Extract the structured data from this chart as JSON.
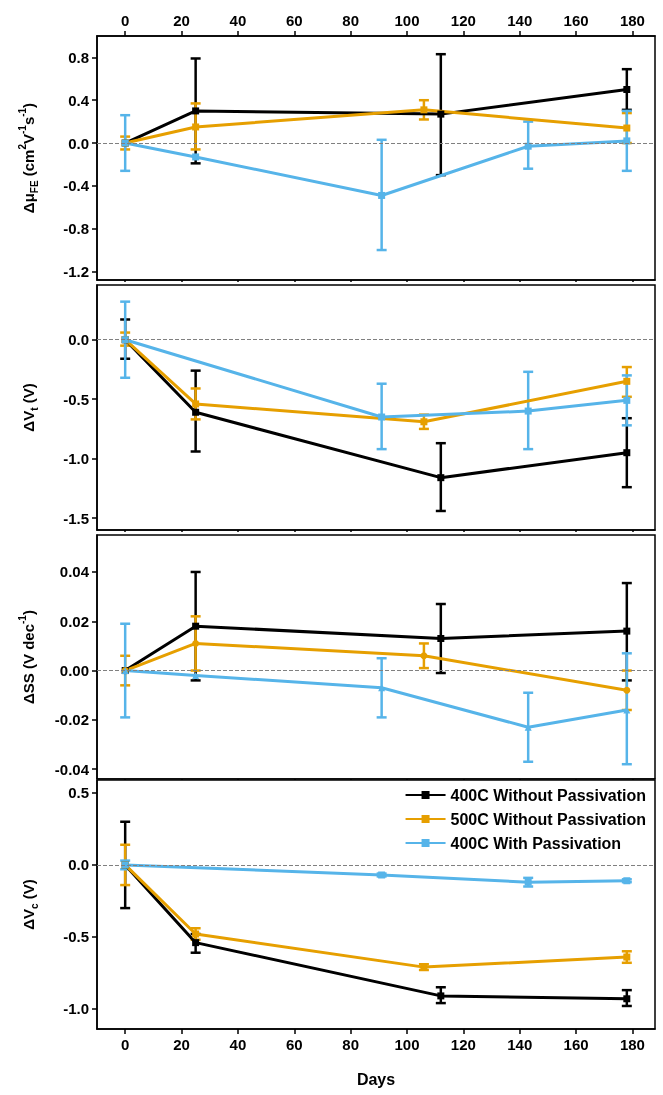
{
  "chart_data": [
    {
      "type": "line",
      "ylabel": "Δμ$_{FE}$ (cm$^{2}$V$^{-1}$s$^{-1}$)",
      "xlim": [
        -10,
        188
      ],
      "xticks": [
        0,
        20,
        40,
        60,
        80,
        100,
        120,
        140,
        160,
        180
      ],
      "x2lim": [
        -10,
        188
      ],
      "x2ticks": [
        0,
        20,
        40,
        60,
        80,
        100,
        120,
        140,
        160,
        180
      ],
      "tick_labels": "y",
      "ylim": [
        -1.28,
        1.0
      ],
      "yticks": [
        {
          "value": -1.2,
          "label": "-1.2"
        },
        {
          "value": -0.8,
          "label": "-0.8"
        },
        {
          "value": -0.4,
          "label": "-0.4"
        },
        {
          "value": 0,
          "label": "0.0"
        },
        {
          "value": 0.4,
          "label": "0.4"
        },
        {
          "value": 0.8,
          "label": "0.8"
        }
      ],
      "marker": "square",
      "line_style": "solid",
      "grid": false,
      "legend": false,
      "ref_lines": [
        {
          "axis": "y",
          "value": 0,
          "color": "#808080",
          "line_style": "dashed"
        }
      ],
      "series": [
        {
          "color": "#000000",
          "x": [
            0,
            25,
            112,
            178
          ],
          "values": [
            0,
            0.3,
            0.27,
            0.5
          ],
          "errors": [
            null,
            [
              -0.19,
              0.79
            ],
            [
              -0.3,
              0.83
            ],
            [
              0.31,
              0.69
            ]
          ]
        },
        {
          "color": "#e69f00",
          "x": [
            0,
            25,
            106,
            178
          ],
          "values": [
            0,
            0.15,
            0.31,
            0.14
          ],
          "errors": [
            [
              -0.06,
              0.06
            ],
            [
              -0.06,
              0.37
            ],
            [
              0.22,
              0.4
            ],
            [
              0.0,
              0.28
            ]
          ]
        },
        {
          "color": "#56b4e9",
          "x": [
            0,
            25,
            91,
            143,
            178
          ],
          "values": [
            0,
            -0.13,
            -0.49,
            -0.03,
            0.02
          ],
          "errors": [
            [
              -0.26,
              0.26
            ],
            null,
            [
              -1.0,
              0.03
            ],
            [
              -0.24,
              0.2
            ],
            [
              -0.26,
              0.3
            ]
          ]
        }
      ]
    },
    {
      "type": "line",
      "ylabel": "ΔV$_{t}$ (V)",
      "xlim": [
        -10,
        188
      ],
      "xticks": [
        0,
        20,
        40,
        60,
        80,
        100,
        120,
        140,
        160,
        180
      ],
      "tick_labels": "y",
      "ylim": [
        -1.6,
        0.46
      ],
      "yticks": [
        {
          "value": -1.5,
          "label": "-1.5"
        },
        {
          "value": -1.0,
          "label": "-1.0"
        },
        {
          "value": -0.5,
          "label": "-0.5"
        },
        {
          "value": 0,
          "label": "0.0"
        }
      ],
      "marker": "square",
      "line_style": "solid",
      "grid": false,
      "legend": false,
      "ref_lines": [
        {
          "axis": "y",
          "value": 0,
          "color": "#808080",
          "line_style": "dashed"
        }
      ],
      "series": [
        {
          "color": "#000000",
          "x": [
            0,
            25,
            112,
            178
          ],
          "values": [
            0,
            -0.61,
            -1.16,
            -0.95
          ],
          "errors": [
            [
              -0.16,
              0.17
            ],
            [
              -0.94,
              -0.26
            ],
            [
              -1.44,
              -0.87
            ],
            [
              -1.24,
              -0.66
            ]
          ]
        },
        {
          "color": "#e69f00",
          "x": [
            0,
            25,
            106,
            178
          ],
          "values": [
            0,
            -0.54,
            -0.69,
            -0.35
          ],
          "errors": [
            [
              -0.05,
              0.06
            ],
            [
              -0.67,
              -0.41
            ],
            [
              -0.75,
              -0.63
            ],
            [
              -0.48,
              -0.23
            ]
          ]
        },
        {
          "color": "#56b4e9",
          "x": [
            0,
            91,
            143,
            178
          ],
          "values": [
            0,
            -0.65,
            -0.6,
            -0.51
          ],
          "errors": [
            [
              -0.32,
              0.32
            ],
            [
              -0.92,
              -0.37
            ],
            [
              -0.92,
              -0.27
            ],
            [
              -0.72,
              -0.3
            ]
          ]
        }
      ]
    },
    {
      "type": "line",
      "ylabel": "ΔSS (V dec$^{-1}$)",
      "xlim": [
        -10,
        188
      ],
      "xticks": [
        0,
        20,
        40,
        60,
        80,
        100,
        120,
        140,
        160,
        180
      ],
      "tick_labels": "y",
      "ylim": [
        -0.044,
        0.055
      ],
      "yticks": [
        {
          "value": -0.04,
          "label": "-0.04"
        },
        {
          "value": -0.02,
          "label": "-0.02"
        },
        {
          "value": 0,
          "label": "0.00"
        },
        {
          "value": 0.02,
          "label": "0.02"
        },
        {
          "value": 0.04,
          "label": "0.04"
        }
      ],
      "marker": "square",
      "line_style": "solid",
      "grid": false,
      "legend": false,
      "ref_lines": [
        {
          "axis": "y",
          "value": 0,
          "color": "#808080",
          "line_style": "dashed"
        }
      ],
      "series": [
        {
          "color": "#000000",
          "x": [
            0,
            25,
            112,
            178
          ],
          "values": [
            0,
            0.018,
            0.013,
            0.016
          ],
          "errors": [
            null,
            [
              -0.004,
              0.04
            ],
            [
              -0.001,
              0.027
            ],
            [
              -0.004,
              0.0355
            ]
          ]
        },
        {
          "color": "#e69f00",
          "marker": "circle",
          "x": [
            0,
            25,
            106,
            178
          ],
          "values": [
            0,
            0.011,
            0.006,
            -0.008
          ],
          "errors": [
            [
              -0.006,
              0.006
            ],
            [
              0.0,
              0.022
            ],
            [
              0.001,
              0.011
            ],
            [
              -0.016,
              0.0
            ]
          ]
        },
        {
          "color": "#56b4e9",
          "marker": "triangle",
          "x": [
            0,
            25,
            91,
            143,
            178
          ],
          "values": [
            0,
            -0.002,
            -0.007,
            -0.023,
            -0.016
          ],
          "errors": [
            [
              -0.019,
              0.019
            ],
            null,
            [
              -0.019,
              0.005
            ],
            [
              -0.037,
              -0.009
            ],
            [
              -0.038,
              0.007
            ]
          ]
        }
      ]
    },
    {
      "type": "line",
      "ylabel": "ΔV$_{c}$ (V)",
      "xlabel": "Days",
      "xlim": [
        -10,
        188
      ],
      "xticks": [
        0,
        20,
        40,
        60,
        80,
        100,
        120,
        140,
        160,
        180
      ],
      "ylim": [
        -1.14,
        0.59
      ],
      "yticks": [
        {
          "value": -1.0,
          "label": "-1.0"
        },
        {
          "value": -0.5,
          "label": "-0.5"
        },
        {
          "value": 0,
          "label": "0.0"
        },
        {
          "value": 0.5,
          "label": "0.5"
        }
      ],
      "marker": "square",
      "line_style": "solid",
      "grid": false,
      "legend": "top right",
      "ref_lines": [
        {
          "axis": "y",
          "value": 0,
          "color": "#808080",
          "line_style": "dashed"
        }
      ],
      "series": [
        {
          "name": "400C Without Passivation",
          "color": "#000000",
          "x": [
            0,
            25,
            112,
            178
          ],
          "values": [
            0,
            -0.54,
            -0.91,
            -0.93
          ],
          "errors": [
            [
              -0.3,
              0.3
            ],
            [
              -0.61,
              -0.48
            ],
            [
              -0.96,
              -0.85
            ],
            [
              -0.98,
              -0.87
            ]
          ]
        },
        {
          "name": "500C Without Passivation",
          "color": "#e69f00",
          "x": [
            0,
            25,
            106,
            178
          ],
          "values": [
            0,
            -0.48,
            -0.71,
            -0.64
          ],
          "errors": [
            [
              -0.14,
              0.14
            ],
            [
              -0.52,
              -0.44
            ],
            [
              -0.73,
              -0.69
            ],
            [
              -0.68,
              -0.6
            ]
          ]
        },
        {
          "name": "400C With Passivation",
          "color": "#56b4e9",
          "x": [
            0,
            91,
            143,
            178
          ],
          "values": [
            0,
            -0.07,
            -0.12,
            -0.11
          ],
          "errors": [
            [
              -0.03,
              0.03
            ],
            [
              -0.08,
              -0.06
            ],
            [
              -0.15,
              -0.09
            ],
            [
              -0.12,
              -0.1
            ]
          ]
        }
      ]
    }
  ]
}
